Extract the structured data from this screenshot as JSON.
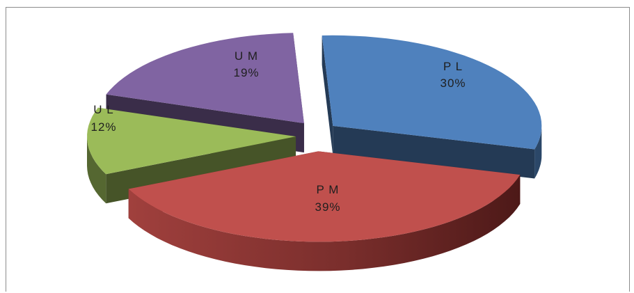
{
  "chart_data": {
    "type": "pie",
    "title": "",
    "categories": [
      "PL",
      "PM",
      "UL",
      "UM"
    ],
    "values": [
      30,
      39,
      12,
      19
    ],
    "labels": [
      {
        "name": "P L",
        "percent": "30%"
      },
      {
        "name": "P M",
        "percent": "39%"
      },
      {
        "name": "U L",
        "percent": "12%"
      },
      {
        "name": "U M",
        "percent": "19%"
      }
    ],
    "style": "3d-exploded",
    "legend": "none"
  },
  "colors": {
    "PL": "#4f81bd",
    "PM": "#c0504d",
    "UL": "#9bbb59",
    "UM": "#8064a2"
  }
}
